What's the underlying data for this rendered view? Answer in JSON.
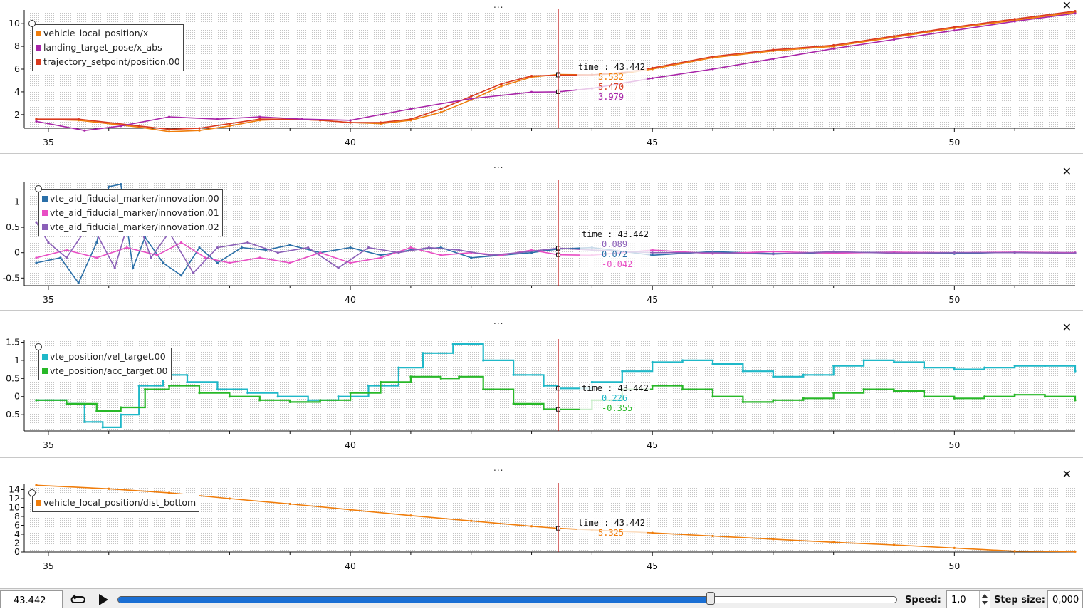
{
  "x_axis": {
    "min": 34.6,
    "max": 52.0,
    "ticks": [
      35,
      40,
      45,
      50
    ]
  },
  "cursor": {
    "time": 43.442,
    "time_label": "time : 43.442",
    "color": "#c21f1f"
  },
  "panels": [
    {
      "id": "p1",
      "menu_glyph": "...",
      "close_glyph": "✕",
      "ylim": [
        0.8,
        11.2
      ],
      "yticks": [
        2,
        4,
        6,
        8,
        10
      ],
      "legend": [
        {
          "name": "vehicle_local_position/x",
          "color": "#f07d0b"
        },
        {
          "name": "landing_target_pose/x_abs",
          "color": "#a824a8"
        },
        {
          "name": "trajectory_setpoint/position.00",
          "color": "#d93a1f"
        }
      ],
      "tooltip_values": [
        {
          "text": "5.532",
          "color": "#f07d0b"
        },
        {
          "text": "5.470",
          "color": "#d93a1f"
        },
        {
          "text": "3.979",
          "color": "#a824a8"
        }
      ]
    },
    {
      "id": "p2",
      "menu_glyph": "...",
      "close_glyph": "✕",
      "ylim": [
        -0.65,
        1.4
      ],
      "yticks": [
        -0.5,
        0,
        0.5,
        1
      ],
      "ytick_labels": [
        "-0.5",
        "0",
        "0.5",
        "1"
      ],
      "legend": [
        {
          "name": "vte_aid_fiducial_marker/innovation.00",
          "color": "#2a6fa8"
        },
        {
          "name": "vte_aid_fiducial_marker/innovation.01",
          "color": "#e84ec4"
        },
        {
          "name": "vte_aid_fiducial_marker/innovation.02",
          "color": "#8b5fb8"
        }
      ],
      "tooltip_values": [
        {
          "text": "0.089",
          "color": "#8b5fb8"
        },
        {
          "text": "0.072",
          "color": "#2a6fa8"
        },
        {
          "text": "-0.042",
          "color": "#e84ec4"
        }
      ]
    },
    {
      "id": "p3",
      "menu_glyph": "...",
      "close_glyph": "✕",
      "ylim": [
        -0.95,
        1.55
      ],
      "yticks": [
        -0.5,
        0,
        0.5,
        1,
        1.5
      ],
      "ytick_labels": [
        "-0.5",
        "0",
        "0.5",
        "1",
        "1.5"
      ],
      "legend": [
        {
          "name": "vte_position/vel_target.00",
          "color": "#1fb8c8"
        },
        {
          "name": "vte_position/acc_target.00",
          "color": "#28b828"
        }
      ],
      "tooltip_values": [
        {
          "text": "0.226",
          "color": "#1fb8c8"
        },
        {
          "text": "-0.355",
          "color": "#28b828"
        }
      ]
    },
    {
      "id": "p4",
      "menu_glyph": "...",
      "close_glyph": "✕",
      "ylim": [
        0,
        15.2
      ],
      "yticks": [
        0,
        2,
        4,
        6,
        8,
        10,
        12,
        14
      ],
      "legend": [
        {
          "name": "vehicle_local_position/dist_bottom",
          "color": "#f07d0b"
        }
      ],
      "tooltip_values": [
        {
          "text": "5.325",
          "color": "#f07d0b"
        }
      ]
    }
  ],
  "chart_data": [
    {
      "type": "line",
      "ylim": [
        0.8,
        11.2
      ],
      "series": [
        {
          "name": "vehicle_local_position/x",
          "color": "#f07d0b",
          "x": [
            34.8,
            35.5,
            36.5,
            37.0,
            37.5,
            38.0,
            38.5,
            39.0,
            39.5,
            40.0,
            40.5,
            41.0,
            41.5,
            42.0,
            42.5,
            43.0,
            43.442,
            44.0,
            44.5,
            45.0,
            46.0,
            47.0,
            48.0,
            49.0,
            50.0,
            51.0,
            52.0
          ],
          "y": [
            1.6,
            1.5,
            0.9,
            0.5,
            0.6,
            1.0,
            1.5,
            1.6,
            1.5,
            1.3,
            1.2,
            1.5,
            2.2,
            3.3,
            4.5,
            5.3,
            5.532,
            5.5,
            5.6,
            6.0,
            7.0,
            7.6,
            8.0,
            8.8,
            9.6,
            10.3,
            11.0
          ]
        },
        {
          "name": "trajectory_setpoint/position.00",
          "color": "#d93a1f",
          "x": [
            34.8,
            35.5,
            36.5,
            37.0,
            37.5,
            38.0,
            38.5,
            39.0,
            39.5,
            40.0,
            40.5,
            41.0,
            41.5,
            42.0,
            42.5,
            43.0,
            43.442,
            44.0,
            44.5,
            45.0,
            46.0,
            47.0,
            48.0,
            49.0,
            50.0,
            51.0,
            52.0
          ],
          "y": [
            1.6,
            1.6,
            1.0,
            0.7,
            0.8,
            1.2,
            1.6,
            1.6,
            1.5,
            1.3,
            1.3,
            1.6,
            2.5,
            3.6,
            4.7,
            5.4,
            5.47,
            5.5,
            5.7,
            6.1,
            7.1,
            7.7,
            8.1,
            8.9,
            9.7,
            10.4,
            11.1
          ]
        },
        {
          "name": "landing_target_pose/x_abs",
          "color": "#a824a8",
          "x": [
            34.8,
            35.6,
            36.2,
            37.0,
            37.8,
            38.5,
            39.2,
            40.0,
            41.0,
            42.0,
            43.0,
            43.442,
            44.0,
            45.0,
            46.0,
            47.0,
            48.0,
            49.0,
            50.0,
            51.0,
            52.0
          ],
          "y": [
            1.4,
            0.6,
            1.0,
            1.8,
            1.6,
            1.8,
            1.6,
            1.5,
            2.5,
            3.4,
            3.979,
            4.0,
            4.3,
            5.2,
            6.0,
            6.9,
            7.8,
            8.6,
            9.4,
            10.2,
            10.9
          ]
        }
      ]
    },
    {
      "type": "line",
      "ylim": [
        -0.65,
        1.4
      ],
      "series": [
        {
          "name": "vte_aid_fiducial_marker/innovation.00",
          "color": "#2a6fa8",
          "x": [
            34.8,
            35.2,
            35.5,
            35.8,
            36.0,
            36.2,
            36.4,
            36.6,
            36.9,
            37.2,
            37.5,
            37.8,
            38.2,
            38.6,
            39.0,
            39.5,
            40.0,
            40.5,
            41.0,
            41.5,
            42.0,
            42.5,
            43.0,
            43.442,
            44.0,
            45.0,
            46.0,
            47.0,
            48.0,
            49.0,
            50.0,
            51.0,
            52.0
          ],
          "y": [
            -0.2,
            -0.1,
            -0.6,
            0.2,
            1.3,
            1.35,
            -0.3,
            0.3,
            -0.2,
            -0.45,
            0.1,
            -0.2,
            0.1,
            0.05,
            0.15,
            0.0,
            0.1,
            -0.05,
            0.05,
            0.1,
            -0.1,
            -0.05,
            0.0,
            0.072,
            0.1,
            -0.05,
            0.02,
            -0.02,
            0.0,
            0.01,
            -0.02,
            0.01,
            0.0
          ]
        },
        {
          "name": "vte_aid_fiducial_marker/innovation.01",
          "color": "#e84ec4",
          "x": [
            34.8,
            35.3,
            35.8,
            36.3,
            36.8,
            37.2,
            37.6,
            38.0,
            38.5,
            39.0,
            39.5,
            40.0,
            40.5,
            41.0,
            41.5,
            42.0,
            42.5,
            43.0,
            43.442,
            44.0,
            45.0,
            46.0,
            47.0,
            48.0,
            49.0,
            50.0,
            51.0,
            52.0
          ],
          "y": [
            -0.1,
            0.05,
            -0.1,
            0.1,
            -0.05,
            0.2,
            -0.1,
            -0.2,
            -0.1,
            -0.2,
            0.0,
            -0.2,
            -0.1,
            0.1,
            -0.05,
            0.0,
            -0.05,
            0.05,
            -0.042,
            -0.05,
            0.05,
            -0.02,
            0.02,
            -0.01,
            0.01,
            0.0,
            0.01,
            0.0
          ]
        },
        {
          "name": "vte_aid_fiducial_marker/innovation.02",
          "color": "#8b5fb8",
          "x": [
            34.8,
            35.0,
            35.3,
            35.7,
            36.1,
            36.4,
            36.7,
            37.0,
            37.4,
            37.8,
            38.3,
            38.8,
            39.3,
            39.8,
            40.3,
            40.8,
            41.3,
            41.8,
            42.3,
            42.8,
            43.442,
            44.0,
            45.0,
            46.0,
            47.0,
            48.0,
            49.0,
            50.0,
            51.0,
            52.0
          ],
          "y": [
            0.6,
            0.2,
            -0.1,
            0.6,
            -0.3,
            0.9,
            -0.1,
            0.4,
            -0.4,
            0.1,
            0.2,
            0.0,
            0.1,
            -0.3,
            0.1,
            0.0,
            0.1,
            0.05,
            -0.05,
            0.0,
            0.089,
            0.05,
            0.0,
            0.0,
            -0.03,
            0.02,
            -0.01,
            0.0,
            0.0,
            -0.01
          ]
        }
      ]
    },
    {
      "type": "line",
      "ylim": [
        -0.95,
        1.55
      ],
      "series": [
        {
          "name": "vte_position/vel_target.00",
          "color": "#1fb8c8",
          "x": [
            34.8,
            35.3,
            35.6,
            35.9,
            36.2,
            36.5,
            36.9,
            37.3,
            37.8,
            38.3,
            38.8,
            39.3,
            39.8,
            40.3,
            40.8,
            41.2,
            41.7,
            42.2,
            42.7,
            43.2,
            43.442,
            44.0,
            44.5,
            45.0,
            45.5,
            46.0,
            46.5,
            47.0,
            47.5,
            48.0,
            48.5,
            49.0,
            49.5,
            50.0,
            50.5,
            51.0,
            51.5,
            52.0
          ],
          "y": [
            -0.1,
            -0.2,
            -0.7,
            -0.85,
            -0.5,
            0.3,
            0.6,
            0.4,
            0.2,
            0.1,
            0.0,
            -0.1,
            0.0,
            0.3,
            0.8,
            1.2,
            1.45,
            1.0,
            0.6,
            0.3,
            0.226,
            0.4,
            0.7,
            0.95,
            1.0,
            0.9,
            0.7,
            0.55,
            0.6,
            0.85,
            1.0,
            0.95,
            0.8,
            0.75,
            0.8,
            0.85,
            0.85,
            0.7
          ]
        },
        {
          "name": "vte_position/acc_target.00",
          "color": "#28b828",
          "x": [
            34.8,
            35.3,
            35.8,
            36.2,
            36.6,
            37.0,
            37.5,
            38.0,
            38.5,
            39.0,
            39.5,
            40.0,
            40.5,
            41.0,
            41.5,
            41.8,
            42.2,
            42.7,
            43.2,
            43.442,
            44.0,
            44.5,
            45.0,
            45.5,
            46.0,
            46.5,
            47.0,
            47.5,
            48.0,
            48.5,
            49.0,
            49.5,
            50.0,
            50.5,
            51.0,
            51.5,
            52.0
          ],
          "y": [
            -0.1,
            -0.2,
            -0.4,
            -0.3,
            0.2,
            0.3,
            0.1,
            0.0,
            -0.1,
            -0.15,
            -0.1,
            0.1,
            0.4,
            0.55,
            0.5,
            0.55,
            0.2,
            -0.2,
            -0.35,
            -0.355,
            -0.1,
            0.2,
            0.3,
            0.2,
            0.0,
            -0.15,
            -0.1,
            -0.05,
            0.1,
            0.2,
            0.15,
            0.0,
            -0.05,
            0.0,
            0.05,
            0.0,
            -0.1
          ]
        }
      ]
    },
    {
      "type": "line",
      "ylim": [
        0,
        15.2
      ],
      "series": [
        {
          "name": "vehicle_local_position/dist_bottom",
          "color": "#f07d0b",
          "x": [
            34.8,
            36.0,
            37.0,
            38.0,
            39.0,
            40.0,
            41.0,
            42.0,
            43.0,
            43.442,
            44.0,
            45.0,
            46.0,
            47.0,
            48.0,
            49.0,
            50.0,
            51.0,
            52.0
          ],
          "y": [
            15.0,
            14.2,
            13.3,
            12.0,
            10.8,
            9.5,
            8.2,
            7.0,
            5.8,
            5.325,
            5.0,
            4.3,
            3.6,
            2.9,
            2.2,
            1.6,
            0.9,
            0.2,
            0.1
          ]
        }
      ]
    }
  ],
  "controls": {
    "time_value": "43.442",
    "speed_label": "Speed:",
    "speed_value": "1,0",
    "step_label": "Step size:",
    "step_value": "0,000",
    "slider_fraction": 0.76
  }
}
